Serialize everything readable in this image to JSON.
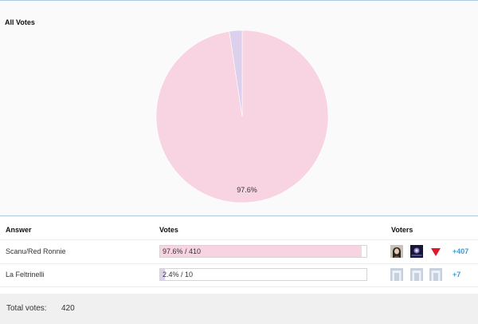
{
  "chart_data": {
    "type": "pie",
    "title": "All Votes",
    "slices": [
      {
        "label": "Scanu/Red Ronnie",
        "value": 97.6,
        "color": "#f8d4e2",
        "data_label": "97.6%"
      },
      {
        "label": "La Feltrinelli",
        "value": 2.4,
        "color": "#dcd0ec",
        "data_label": ""
      }
    ]
  },
  "table": {
    "headers": {
      "answer": "Answer",
      "votes": "Votes",
      "voters": "Voters"
    },
    "rows": [
      {
        "answer": "Scanu/Red Ronnie",
        "votes_text": "97.6% / 410",
        "fraction": 0.976,
        "bar_color": "#f8d4e2",
        "voter_icons": [
          "user-photo-icon",
          "user-avatar-icon",
          "red-triangle-icon"
        ],
        "more": "+407"
      },
      {
        "answer": "La Feltrinelli",
        "votes_text": "2.4% / 10",
        "fraction": 0.024,
        "bar_color": "#dcd0ec",
        "voter_icons": [
          "default-avatar-icon",
          "default-avatar-icon",
          "default-avatar-icon"
        ],
        "more": "+7"
      }
    ]
  },
  "footer": {
    "total_label": "Total votes:",
    "total_value": "420"
  },
  "colors": {
    "accent": "#3d9cd6",
    "rule": "#a9cbe3"
  }
}
